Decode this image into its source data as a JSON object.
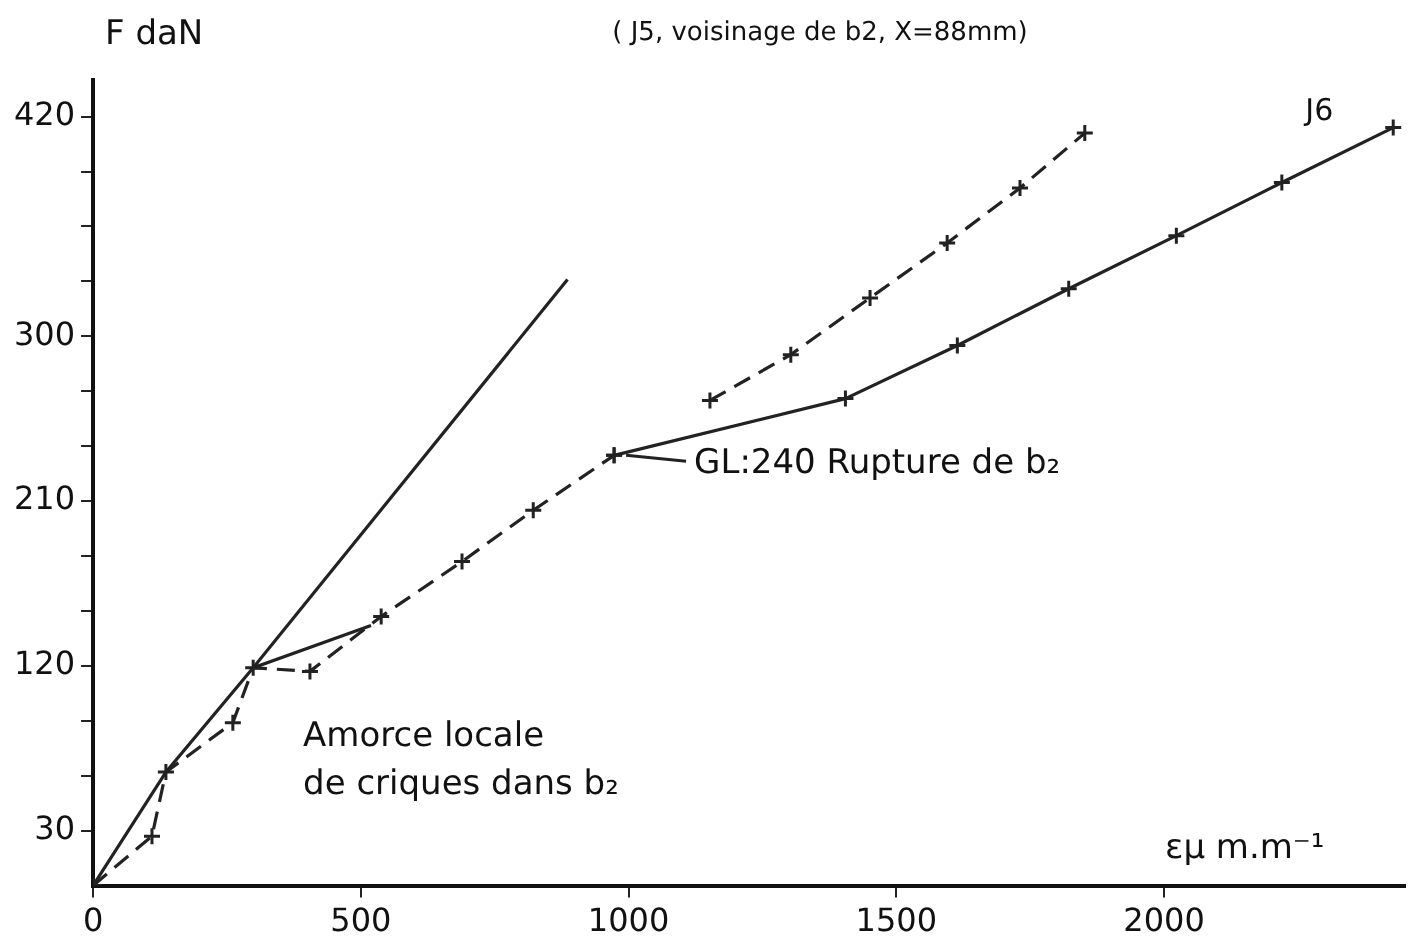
{
  "chart_data": {
    "type": "line",
    "title": "( J5, voisinage de b2, X=88mm)",
    "xlabel": "εμ m.m⁻¹",
    "ylabel": "F daN",
    "xlim": [
      0,
      2450
    ],
    "xticks": [
      0,
      500,
      1000,
      1500,
      2000
    ],
    "ylim": [
      0,
      440
    ],
    "yticks": [
      30,
      {
        "value": 60,
        "label": null
      },
      {
        "value": 90,
        "label": null
      },
      120,
      {
        "value": 150,
        "label": null
      },
      {
        "value": 180,
        "label": null
      },
      210,
      {
        "value": 240,
        "label": null
      },
      {
        "value": 270,
        "label": null
      },
      300,
      {
        "value": 330,
        "label": null
      },
      {
        "value": 360,
        "label": null
      },
      {
        "value": 390,
        "label": null
      },
      420
    ],
    "grid": false,
    "legend": false,
    "series": [
      {
        "color": "#222222",
        "line_style": "solid",
        "x": [
          0,
          136,
          299,
          886
        ],
        "values": [
          0,
          62,
          119,
          331
        ]
      },
      {
        "color": "#222222",
        "line_style": "solid",
        "x": [
          299,
          519
        ],
        "values": [
          119,
          142
        ]
      },
      {
        "color": "#222222",
        "marker": "cross",
        "line_style": "dashed",
        "x": [
          0,
          110,
          136,
          261,
          299,
          405,
          538,
          689,
          822,
          973
        ],
        "values": [
          0,
          27,
          62,
          89,
          119,
          117,
          147,
          177,
          205,
          235
        ]
      },
      {
        "name": "J6",
        "color": "#222222",
        "marker": "cross",
        "line_style": "solid",
        "x": [
          973,
          1405,
          1614,
          1822,
          2023,
          2220,
          2428
        ],
        "values": [
          235,
          266,
          295,
          326,
          355,
          384,
          414
        ]
      },
      {
        "color": "#222222",
        "marker": "cross",
        "line_style": "dashed",
        "x": [
          1152,
          1303,
          1451,
          1595,
          1731,
          1852
        ],
        "values": [
          265,
          290,
          321,
          351,
          381,
          411
        ]
      }
    ],
    "annotations": [
      "Amorce locale\nde criques dans b₂",
      {
        "text": "GL:240 Rupture de b₂",
        "x": 973,
        "y": 235
      }
    ]
  }
}
